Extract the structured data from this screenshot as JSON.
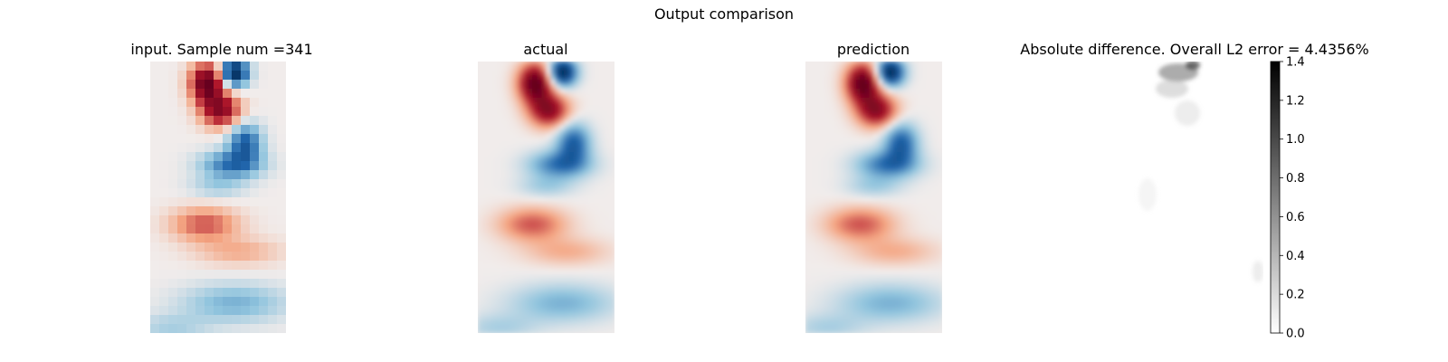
{
  "figure": {
    "suptitle": "Output comparison"
  },
  "panels": [
    {
      "title": "input. Sample num =341"
    },
    {
      "title": "actual"
    },
    {
      "title": "prediction"
    },
    {
      "title": "Absolute difference. Overall L2 error = 4.4356%"
    }
  ],
  "colormaps": {
    "diverging": {
      "negative": "#053061",
      "mid_negative": "#2166ac",
      "light_negative": "#92c5de",
      "center": "#f1eceb",
      "light_positive": "#f4a582",
      "mid_positive": "#b2182b",
      "positive": "#67001f"
    },
    "sequential_gray": {
      "low": "#ffffff",
      "high": "#000000"
    }
  },
  "chart_data": [
    {
      "type": "heatmap",
      "title": "input. Sample num =341",
      "colormap": "diverging",
      "resolution": "coarse",
      "axes_visible": false
    },
    {
      "type": "heatmap",
      "title": "actual",
      "colormap": "diverging",
      "resolution": "fine",
      "axes_visible": false
    },
    {
      "type": "heatmap",
      "title": "prediction",
      "colormap": "diverging",
      "resolution": "fine",
      "axes_visible": false
    },
    {
      "type": "heatmap",
      "title": "Absolute difference. Overall L2 error = 4.4356%",
      "colormap": "sequential_gray",
      "axes_visible": false,
      "colorbar": {
        "vmin": 0.0,
        "vmax": 1.4,
        "ticks": [
          0.0,
          0.2,
          0.4,
          0.6,
          0.8,
          1.0,
          1.2,
          1.4
        ],
        "tick_labels": [
          "0.0",
          "0.2",
          "0.4",
          "0.6",
          "0.8",
          "1.0",
          "1.2",
          "1.4"
        ]
      }
    }
  ]
}
